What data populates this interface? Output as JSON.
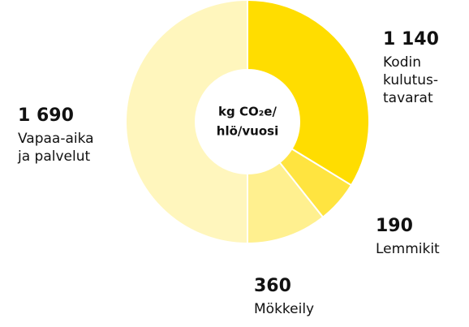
{
  "chart_data": {
    "type": "donut",
    "center_label": [
      "kg CO₂e/",
      "hlö/vuosi"
    ],
    "categories": [
      "Kodin\nkulutus-\ntavarat",
      "Lemmikit",
      "Mökkeily",
      "Vapaa-aika\nja palvelut"
    ],
    "values": [
      1140,
      190,
      360,
      1690
    ],
    "value_labels": [
      "1 140",
      "190",
      "360",
      "1 690"
    ],
    "colors": [
      "#ffdd00",
      "#ffe440",
      "#fff08f",
      "#fff6bd"
    ]
  }
}
